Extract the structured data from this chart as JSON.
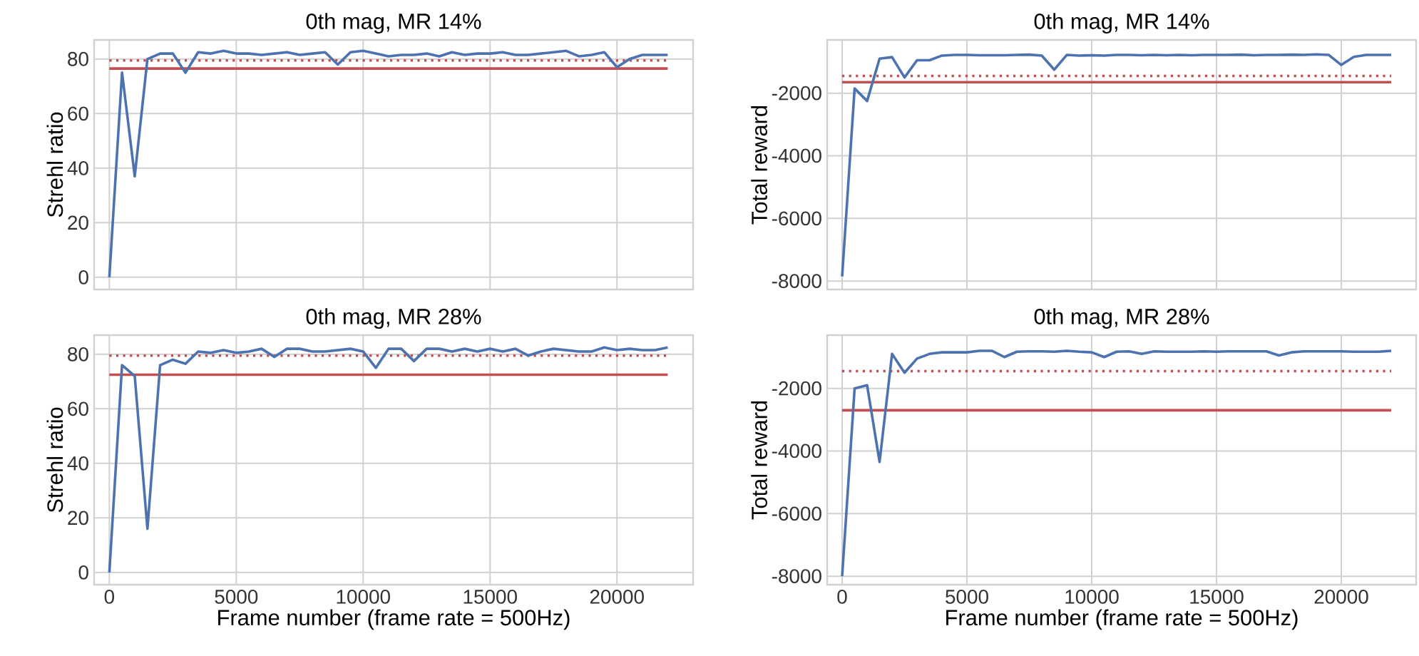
{
  "chart_data": [
    {
      "type": "line",
      "title": "0th mag, MR 14%",
      "ylabel": "Strehl ratio",
      "x": [
        0,
        500,
        1000,
        1500,
        2000,
        2500,
        3000,
        3500,
        4000,
        4500,
        5000,
        5500,
        6000,
        6500,
        7000,
        7500,
        8000,
        8500,
        9000,
        9500,
        10000,
        10500,
        11000,
        11500,
        12000,
        12500,
        13000,
        13500,
        14000,
        14500,
        15000,
        15500,
        16000,
        16500,
        17000,
        17500,
        18000,
        18500,
        19000,
        19500,
        20000,
        20500,
        21000,
        21500,
        22000
      ],
      "series": [
        {
          "color": "#4c72b0",
          "values": [
            0,
            75,
            37,
            80,
            82,
            82,
            75,
            82.5,
            82,
            83,
            82,
            82,
            81.5,
            82,
            82.5,
            81.5,
            82,
            82.5,
            78,
            82.5,
            83,
            82,
            81,
            81.5,
            81.5,
            82,
            81,
            82.5,
            81.5,
            82,
            82,
            82.5,
            81.5,
            81.5,
            82,
            82.5,
            83,
            81,
            81.5,
            82.5,
            77,
            80,
            81.5,
            81.5,
            81.5
          ]
        }
      ],
      "ref_lines": [
        {
          "axis": "y",
          "value": 76.5,
          "color": "#c44e52",
          "line_style": "solid"
        },
        {
          "axis": "y",
          "value": 79.5,
          "color": "#c44e52",
          "line_style": "dotted"
        }
      ],
      "xlim": [
        -600,
        23000
      ],
      "ylim": [
        -4.5,
        87
      ],
      "xticks": [
        0,
        5000,
        10000,
        15000,
        20000
      ],
      "yticks": [
        0,
        20,
        40,
        60,
        80
      ],
      "grid": true,
      "tick_labels": "y"
    },
    {
      "type": "line",
      "title": "0th mag, MR 14%",
      "ylabel": "Total reward",
      "x": [
        0,
        500,
        1000,
        1500,
        2000,
        2500,
        3000,
        3500,
        4000,
        4500,
        5000,
        5500,
        6000,
        6500,
        7000,
        7500,
        8000,
        8500,
        9000,
        9500,
        10000,
        10500,
        11000,
        11500,
        12000,
        12500,
        13000,
        13500,
        14000,
        14500,
        15000,
        15500,
        16000,
        16500,
        17000,
        17500,
        18000,
        18500,
        19000,
        19500,
        20000,
        20500,
        21000,
        21500,
        22000
      ],
      "series": [
        {
          "color": "#4c72b0",
          "values": [
            -7850,
            -1850,
            -2250,
            -900,
            -850,
            -1500,
            -950,
            -950,
            -800,
            -780,
            -780,
            -790,
            -790,
            -790,
            -780,
            -770,
            -800,
            -1250,
            -780,
            -800,
            -790,
            -800,
            -780,
            -780,
            -790,
            -780,
            -790,
            -780,
            -790,
            -780,
            -780,
            -780,
            -770,
            -790,
            -780,
            -780,
            -770,
            -780,
            -760,
            -780,
            -1100,
            -840,
            -780,
            -780,
            -780
          ]
        }
      ],
      "ref_lines": [
        {
          "axis": "y",
          "value": -1650,
          "color": "#c44e52",
          "line_style": "solid"
        },
        {
          "axis": "y",
          "value": -1450,
          "color": "#c44e52",
          "line_style": "dotted"
        }
      ],
      "xlim": [
        -600,
        23000
      ],
      "ylim": [
        -8270,
        -300
      ],
      "xticks": [
        0,
        5000,
        10000,
        15000,
        20000
      ],
      "yticks": [
        -8000,
        -6000,
        -4000,
        -2000
      ],
      "grid": true,
      "tick_labels": "y"
    },
    {
      "type": "line",
      "title": "0th mag, MR 28%",
      "xlabel": "Frame number (frame rate = 500Hz)",
      "ylabel": "Strehl ratio",
      "x": [
        0,
        500,
        1000,
        1500,
        2000,
        2500,
        3000,
        3500,
        4000,
        4500,
        5000,
        5500,
        6000,
        6500,
        7000,
        7500,
        8000,
        8500,
        9000,
        9500,
        10000,
        10500,
        11000,
        11500,
        12000,
        12500,
        13000,
        13500,
        14000,
        14500,
        15000,
        15500,
        16000,
        16500,
        17000,
        17500,
        18000,
        18500,
        19000,
        19500,
        20000,
        20500,
        21000,
        21500,
        22000
      ],
      "series": [
        {
          "color": "#4c72b0",
          "values": [
            0,
            76,
            72,
            16,
            76,
            78,
            76.5,
            81,
            80.5,
            81.5,
            80.5,
            81,
            82,
            79,
            82,
            82,
            81,
            81,
            81.5,
            82,
            81,
            75,
            82,
            82,
            77.5,
            82,
            82,
            81,
            82,
            81,
            82,
            81,
            82,
            79.5,
            81,
            82,
            81.5,
            81,
            81,
            82.5,
            81.5,
            82,
            81.5,
            81.5,
            82.5
          ]
        }
      ],
      "ref_lines": [
        {
          "axis": "y",
          "value": 72.5,
          "color": "#c44e52",
          "line_style": "solid"
        },
        {
          "axis": "y",
          "value": 79.5,
          "color": "#c44e52",
          "line_style": "dotted"
        }
      ],
      "xlim": [
        -600,
        23000
      ],
      "ylim": [
        -4.5,
        87
      ],
      "xticks": [
        0,
        5000,
        10000,
        15000,
        20000
      ],
      "yticks": [
        0,
        20,
        40,
        60,
        80
      ],
      "grid": true
    },
    {
      "type": "line",
      "title": "0th mag, MR 28%",
      "xlabel": "Frame number (frame rate = 500Hz)",
      "ylabel": "Total reward",
      "x": [
        0,
        500,
        1000,
        1500,
        2000,
        2500,
        3000,
        3500,
        4000,
        4500,
        5000,
        5500,
        6000,
        6500,
        7000,
        7500,
        8000,
        8500,
        9000,
        9500,
        10000,
        10500,
        11000,
        11500,
        12000,
        12500,
        13000,
        13500,
        14000,
        14500,
        15000,
        15500,
        16000,
        16500,
        17000,
        17500,
        18000,
        18500,
        19000,
        19500,
        20000,
        20500,
        21000,
        21500,
        22000
      ],
      "series": [
        {
          "color": "#4c72b0",
          "values": [
            -8000,
            -2000,
            -1900,
            -4350,
            -900,
            -1500,
            -1050,
            -900,
            -850,
            -850,
            -850,
            -800,
            -800,
            -1000,
            -830,
            -820,
            -820,
            -830,
            -800,
            -830,
            -850,
            -1000,
            -830,
            -820,
            -900,
            -820,
            -830,
            -830,
            -830,
            -820,
            -830,
            -820,
            -820,
            -820,
            -820,
            -950,
            -850,
            -820,
            -820,
            -820,
            -820,
            -830,
            -830,
            -830,
            -800
          ]
        }
      ],
      "ref_lines": [
        {
          "axis": "y",
          "value": -2700,
          "color": "#c44e52",
          "line_style": "solid"
        },
        {
          "axis": "y",
          "value": -1450,
          "color": "#c44e52",
          "line_style": "dotted"
        }
      ],
      "xlim": [
        -600,
        23000
      ],
      "ylim": [
        -8270,
        -300
      ],
      "xticks": [
        0,
        5000,
        10000,
        15000,
        20000
      ],
      "yticks": [
        -8000,
        -6000,
        -4000,
        -2000
      ],
      "grid": true
    }
  ]
}
